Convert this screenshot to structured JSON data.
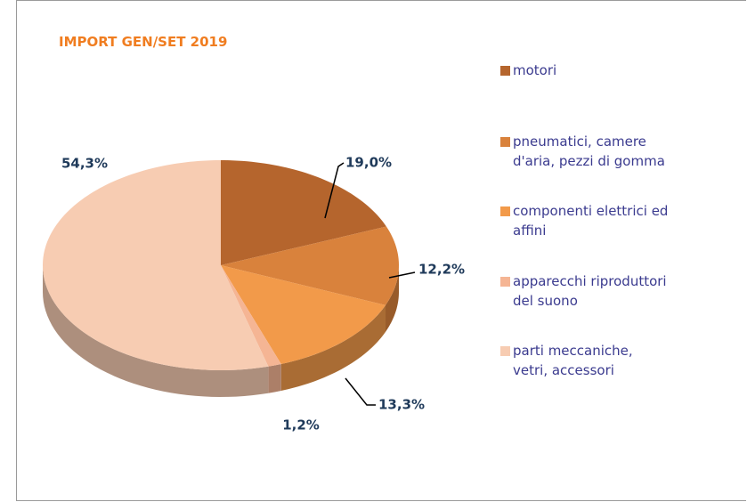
{
  "chart_data": {
    "type": "pie",
    "title": "IMPORT GEN/SET 2019",
    "categories": [
      "motori",
      "pneumatici, camere d'aria, pezzi di gomma",
      "componenti elettrici ed affini",
      "apparecchi riproduttori del suono",
      "parti meccaniche, vetri, accessori"
    ],
    "values": [
      19.0,
      12.2,
      13.3,
      1.2,
      54.3
    ],
    "value_labels": [
      "19,0%",
      "12,2%",
      "13,3%",
      "1,2%",
      "54,3%"
    ],
    "colors": [
      "#b5652d",
      "#d9823c",
      "#f29a4a",
      "#f5b594",
      "#f7ccb2"
    ],
    "legend": "right"
  }
}
